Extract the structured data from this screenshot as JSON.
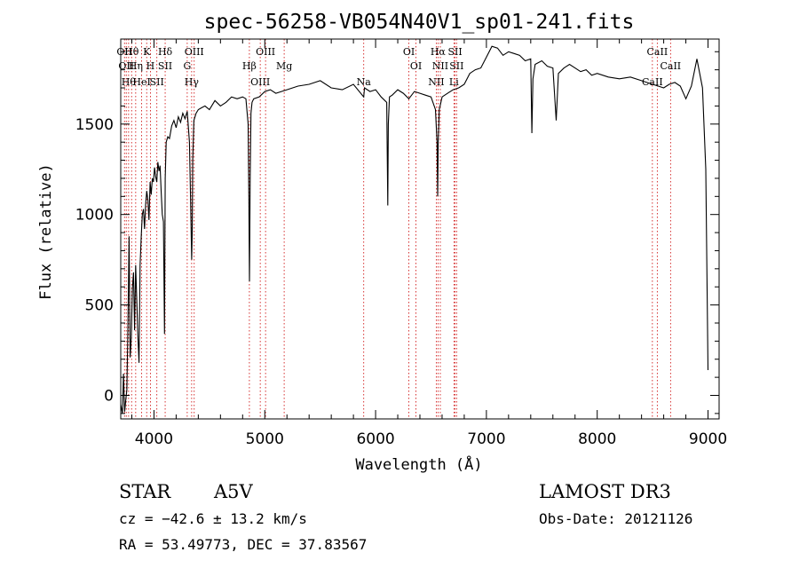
{
  "chart_data": {
    "type": "line",
    "title": "spec-56258-VB054N40V1_sp01-241.fits",
    "xlabel": "Wavelength (Å)",
    "ylabel": "Flux (relative)",
    "xlim": [
      3700,
      9100
    ],
    "ylim": [
      -130,
      1970
    ],
    "x_ticks": [
      4000,
      5000,
      6000,
      7000,
      8000,
      9000
    ],
    "y_ticks": [
      0,
      500,
      1000,
      1500
    ],
    "grid": false,
    "series": [
      {
        "x": [
          3700,
          3715,
          3725,
          3735,
          3745,
          3755,
          3765,
          3775,
          3785,
          3795,
          3805,
          3815,
          3825,
          3835,
          3845,
          3855,
          3865,
          3875,
          3885,
          3895,
          3905,
          3915,
          3925,
          3935,
          3945,
          3955,
          3965,
          3975,
          3985,
          3995,
          4005,
          4015,
          4025,
          4035,
          4045,
          4055,
          4065,
          4075,
          4085,
          4095,
          4101,
          4110,
          4125,
          4140,
          4160,
          4180,
          4200,
          4220,
          4240,
          4260,
          4280,
          4300,
          4320,
          4330,
          4340,
          4345,
          4350,
          4360,
          4380,
          4400,
          4430,
          4460,
          4500,
          4550,
          4600,
          4650,
          4700,
          4750,
          4800,
          4830,
          4850,
          4856,
          4862,
          4868,
          4875,
          4885,
          4900,
          4950,
          5000,
          5050,
          5100,
          5150,
          5200,
          5300,
          5400,
          5500,
          5600,
          5700,
          5800,
          5893,
          5900,
          5950,
          6000,
          6050,
          6100,
          6110,
          6115,
          6125,
          6150,
          6200,
          6250,
          6300,
          6350,
          6400,
          6450,
          6500,
          6540,
          6555,
          6560,
          6565,
          6575,
          6600,
          6650,
          6700,
          6750,
          6800,
          6850,
          6900,
          6950,
          7000,
          7050,
          7100,
          7150,
          7200,
          7250,
          7300,
          7350,
          7400,
          7410,
          7420,
          7440,
          7500,
          7550,
          7600,
          7630,
          7650,
          7700,
          7750,
          7800,
          7850,
          7900,
          7950,
          8000,
          8100,
          8200,
          8300,
          8400,
          8500,
          8550,
          8600,
          8650,
          8700,
          8750,
          8800,
          8850,
          8900,
          8950,
          8980,
          9000
        ],
        "values": [
          -50,
          -100,
          120,
          -90,
          -30,
          30,
          380,
          880,
          210,
          320,
          590,
          680,
          360,
          720,
          520,
          330,
          180,
          720,
          880,
          1000,
          1030,
          920,
          1060,
          1130,
          1080,
          970,
          1180,
          1110,
          1200,
          1180,
          1260,
          1210,
          1180,
          1290,
          1240,
          1270,
          1120,
          1000,
          960,
          340,
          1200,
          1400,
          1430,
          1420,
          1490,
          1520,
          1480,
          1540,
          1510,
          1560,
          1530,
          1570,
          1400,
          1100,
          750,
          900,
          1300,
          1520,
          1560,
          1580,
          1590,
          1600,
          1580,
          1630,
          1600,
          1620,
          1650,
          1640,
          1650,
          1640,
          1500,
          1100,
          630,
          1200,
          1560,
          1620,
          1640,
          1650,
          1680,
          1690,
          1670,
          1680,
          1690,
          1710,
          1720,
          1740,
          1700,
          1690,
          1720,
          1650,
          1700,
          1680,
          1690,
          1650,
          1620,
          1050,
          1500,
          1650,
          1660,
          1690,
          1670,
          1640,
          1680,
          1670,
          1660,
          1650,
          1580,
          1400,
          1100,
          1400,
          1580,
          1650,
          1670,
          1690,
          1700,
          1720,
          1780,
          1800,
          1810,
          1870,
          1930,
          1920,
          1880,
          1900,
          1890,
          1880,
          1850,
          1860,
          1450,
          1750,
          1830,
          1850,
          1820,
          1810,
          1520,
          1780,
          1810,
          1830,
          1810,
          1790,
          1800,
          1770,
          1780,
          1760,
          1750,
          1760,
          1740,
          1720,
          1710,
          1700,
          1720,
          1730,
          1710,
          1640,
          1710,
          1860,
          1700,
          1250,
          140
        ]
      }
    ],
    "line_markers": [
      {
        "wl": 3734,
        "labels": [
          "OII"
        ]
      },
      {
        "wl": 3750,
        "labels": [
          "OII"
        ]
      },
      {
        "wl": 3771,
        "labels": [
          "Hθ"
        ]
      },
      {
        "wl": 3798,
        "labels": [
          "Hθ"
        ]
      },
      {
        "wl": 3835,
        "labels": [
          "Hη"
        ]
      },
      {
        "wl": 3889,
        "labels": [
          "HeI"
        ]
      },
      {
        "wl": 3934,
        "labels": [
          "K"
        ]
      },
      {
        "wl": 3968,
        "labels": [
          "H"
        ]
      },
      {
        "wl": 4026,
        "labels": [
          "SII"
        ]
      },
      {
        "wl": 4101,
        "labels": [
          "Hδ",
          "SII"
        ]
      },
      {
        "wl": 4300,
        "labels": [
          "G"
        ]
      },
      {
        "wl": 4340,
        "labels": [
          "Hγ"
        ]
      },
      {
        "wl": 4363,
        "labels": [
          "OIII"
        ]
      },
      {
        "wl": 4861,
        "labels": [
          "Hβ"
        ]
      },
      {
        "wl": 4959,
        "labels": [
          "OIII"
        ]
      },
      {
        "wl": 5007,
        "labels": [
          "OIII"
        ]
      },
      {
        "wl": 5175,
        "labels": [
          "Mg"
        ]
      },
      {
        "wl": 5893,
        "labels": [
          "Na"
        ]
      },
      {
        "wl": 6300,
        "labels": [
          "OI"
        ]
      },
      {
        "wl": 6364,
        "labels": [
          "OI"
        ]
      },
      {
        "wl": 6548,
        "labels": [
          "NII"
        ]
      },
      {
        "wl": 6563,
        "labels": [
          "Hα"
        ]
      },
      {
        "wl": 6584,
        "labels": [
          "NII"
        ]
      },
      {
        "wl": 6707,
        "labels": [
          "Li"
        ]
      },
      {
        "wl": 6717,
        "labels": [
          "SII"
        ]
      },
      {
        "wl": 6731,
        "labels": [
          "SII"
        ]
      },
      {
        "wl": 8498,
        "labels": [
          "CaII"
        ]
      },
      {
        "wl": 8542,
        "labels": [
          "CaII"
        ]
      },
      {
        "wl": 8662,
        "labels": [
          "CaII"
        ]
      }
    ],
    "marker_color": "#cc0000",
    "line_color": "#000000"
  },
  "info": {
    "class_label": "STAR",
    "subclass": "A5V",
    "survey": "LAMOST DR3",
    "cz": "cz = −42.6 ± 13.2 km/s",
    "obs_date": "Obs-Date: 20121126",
    "radec": "RA =  53.49773, DEC =  37.83567"
  }
}
